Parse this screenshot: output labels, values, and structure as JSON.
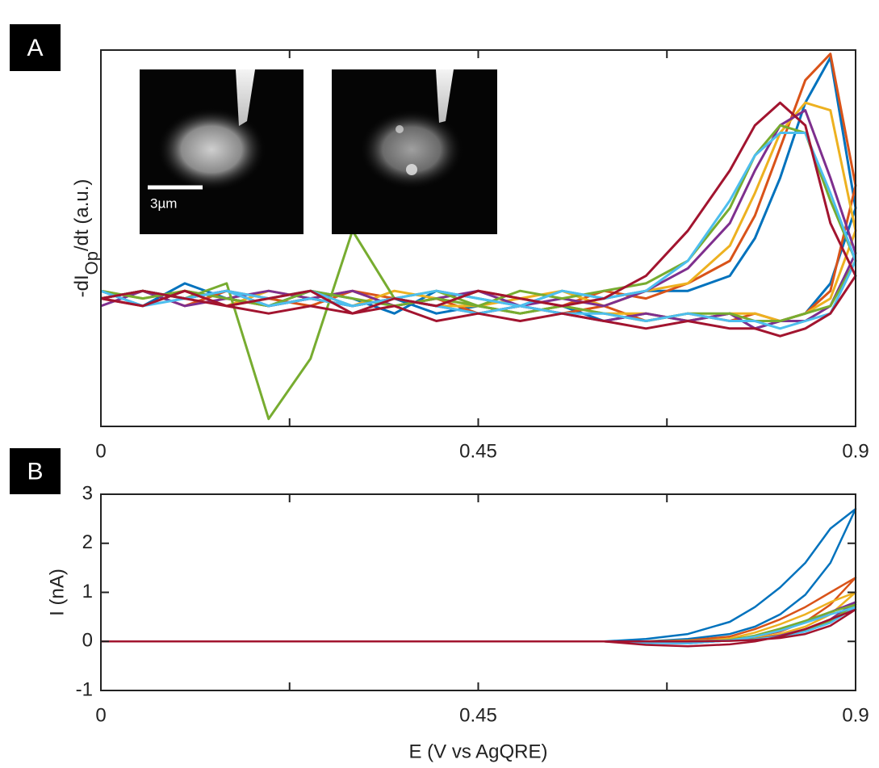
{
  "chart_data": [
    {
      "type": "line",
      "panel": "A",
      "annotation": "3µm",
      "ylabel": [
        "-dI",
        "Op",
        "/dt (a.u.)"
      ],
      "x": [
        0,
        0.05,
        0.1,
        0.15,
        0.2,
        0.25,
        0.3,
        0.35,
        0.4,
        0.45,
        0.5,
        0.55,
        0.6,
        0.65,
        0.7,
        0.75,
        0.78,
        0.81,
        0.84,
        0.87,
        0.9,
        0.87,
        0.84,
        0.81,
        0.78,
        0.75,
        0.7,
        0.65,
        0.6,
        0.55,
        0.5,
        0.45,
        0.4,
        0.35,
        0.3,
        0.25,
        0.2,
        0.15,
        0.1,
        0.05,
        0
      ],
      "xlim": [
        0,
        0.9
      ],
      "ylim": [
        -1.7,
        3.3
      ],
      "xticks": [
        0,
        0.45,
        0.9
      ],
      "xminorticks": [
        0.225,
        0.675
      ],
      "series": [
        {
          "color": "#0072bd",
          "values": [
            0.1,
            -0.1,
            0.2,
            0,
            -0.1,
            0.1,
            0,
            -0.2,
            0.1,
            0,
            -0.1,
            0.1,
            0,
            0.1,
            0.1,
            0.3,
            0.8,
            1.6,
            2.6,
            3.2,
            1.2,
            0.2,
            -0.2,
            -0.3,
            -0.4,
            -0.2,
            -0.3,
            -0.2,
            -0.3,
            -0.1,
            -0.2,
            -0.1,
            -0.2,
            0,
            -0.1,
            0,
            -0.1,
            0.1,
            0,
            0.1,
            0
          ]
        },
        {
          "color": "#d95319",
          "values": [
            0,
            0.1,
            -0.1,
            0.1,
            0,
            -0.1,
            0.1,
            0,
            -0.1,
            0.1,
            0,
            -0.1,
            0.1,
            0,
            0.2,
            0.5,
            1.1,
            2.0,
            2.9,
            3.25,
            1.5,
            0.1,
            -0.2,
            -0.3,
            -0.2,
            -0.3,
            -0.2,
            -0.3,
            -0.1,
            -0.2,
            -0.1,
            -0.2,
            0,
            -0.1,
            0.1,
            0,
            -0.1,
            0,
            0.1,
            -0.1,
            0
          ]
        },
        {
          "color": "#edb120",
          "values": [
            0.1,
            0,
            0.1,
            -0.1,
            0.1,
            0,
            -0.1,
            0.1,
            0,
            -0.1,
            0,
            0.1,
            -0.1,
            0.1,
            0.2,
            0.7,
            1.4,
            2.2,
            2.6,
            2.5,
            0.9,
            0,
            -0.2,
            -0.3,
            -0.2,
            -0.2,
            -0.3,
            -0.2,
            -0.2,
            -0.1,
            -0.2,
            -0.1,
            -0.1,
            0,
            -0.1,
            0.1,
            0,
            -0.1,
            0.1,
            0,
            0.1
          ]
        },
        {
          "color": "#7e2f8e",
          "values": [
            -0.1,
            0.1,
            0,
            0.1,
            -0.1,
            0,
            0.1,
            -0.1,
            0,
            0.1,
            -0.1,
            0,
            -0.1,
            0.1,
            0.4,
            1.0,
            1.7,
            2.3,
            2.5,
            1.6,
            0.6,
            -0.1,
            -0.3,
            -0.3,
            -0.4,
            -0.2,
            -0.3,
            -0.2,
            -0.3,
            -0.2,
            -0.1,
            -0.2,
            -0.1,
            0,
            -0.1,
            0,
            0.1,
            0,
            -0.1,
            0.1,
            0
          ]
        },
        {
          "color": "#77ac30",
          "values": [
            0,
            0.1,
            0,
            0.2,
            -1.6,
            -0.8,
            0.9,
            0,
            0.1,
            -0.1,
            0.1,
            0,
            0.1,
            0.2,
            0.5,
            1.2,
            1.9,
            2.3,
            2.2,
            1.3,
            0.5,
            -0.1,
            -0.2,
            -0.3,
            -0.3,
            -0.2,
            -0.2,
            -0.3,
            -0.2,
            -0.1,
            -0.2,
            -0.1,
            0,
            -0.1,
            0,
            0.1,
            -0.1,
            0,
            0.1,
            0,
            0.1
          ]
        },
        {
          "color": "#4dbeee",
          "values": [
            0.1,
            -0.1,
            0,
            0.1,
            0,
            0.1,
            -0.1,
            0,
            0.1,
            0,
            -0.1,
            0.1,
            0,
            0.1,
            0.5,
            1.3,
            1.9,
            2.2,
            2.2,
            1.4,
            0.5,
            -0.2,
            -0.3,
            -0.4,
            -0.3,
            -0.3,
            -0.2,
            -0.3,
            -0.2,
            -0.2,
            -0.1,
            -0.2,
            -0.1,
            0,
            -0.1,
            0,
            -0.1,
            0.1,
            0,
            -0.1,
            0.1
          ]
        },
        {
          "color": "#a2142f",
          "values": [
            0,
            -0.1,
            0.1,
            -0.1,
            0,
            0.1,
            -0.2,
            0,
            -0.1,
            0.1,
            0,
            -0.1,
            0,
            0.3,
            0.9,
            1.7,
            2.3,
            2.6,
            2.3,
            1.0,
            0.3,
            -0.2,
            -0.4,
            -0.5,
            -0.4,
            -0.4,
            -0.3,
            -0.4,
            -0.3,
            -0.2,
            -0.3,
            -0.2,
            -0.3,
            -0.1,
            -0.2,
            -0.1,
            -0.2,
            -0.1,
            0,
            0.1,
            0
          ]
        }
      ]
    },
    {
      "type": "line",
      "panel": "B",
      "xlabel": "E (V vs AgQRE)",
      "ylabel": "I (nA)",
      "x": [
        0,
        0.05,
        0.1,
        0.15,
        0.2,
        0.25,
        0.3,
        0.35,
        0.4,
        0.45,
        0.5,
        0.55,
        0.6,
        0.65,
        0.7,
        0.75,
        0.78,
        0.81,
        0.84,
        0.87,
        0.9,
        0.87,
        0.84,
        0.81,
        0.78,
        0.75,
        0.7,
        0.65,
        0.6,
        0.55,
        0.5,
        0.45,
        0.4,
        0.35,
        0.3,
        0.25,
        0.2,
        0.15,
        0.1,
        0.05,
        0
      ],
      "xlim": [
        0,
        0.9
      ],
      "ylim": [
        -1,
        3
      ],
      "xticks": [
        0,
        0.45,
        0.9
      ],
      "xminorticks": [
        0.225,
        0.675
      ],
      "yticks": [
        -1,
        0,
        1,
        2,
        3
      ],
      "series": [
        {
          "color": "#0072bd",
          "values": [
            0,
            0,
            0,
            0,
            0,
            0,
            0,
            0,
            0,
            0,
            0,
            0,
            0,
            0,
            0.05,
            0.15,
            0.3,
            0.55,
            0.95,
            1.6,
            2.7,
            2.3,
            1.6,
            1.1,
            0.7,
            0.4,
            0.15,
            0.05,
            0,
            0,
            0,
            0,
            0,
            0,
            0,
            0,
            0,
            0,
            0,
            0,
            0
          ]
        },
        {
          "color": "#d95319",
          "values": [
            0,
            0,
            0,
            0,
            0,
            0,
            0,
            0,
            0,
            0,
            0,
            0,
            0,
            0,
            0.02,
            0.05,
            0.1,
            0.2,
            0.4,
            0.75,
            1.3,
            1.0,
            0.7,
            0.45,
            0.25,
            0.1,
            0.02,
            -0.02,
            0,
            0,
            0,
            0,
            0,
            0,
            0,
            0,
            0,
            0,
            0,
            0,
            0
          ]
        },
        {
          "color": "#edb120",
          "values": [
            0,
            0,
            0,
            0,
            0,
            0,
            0,
            0,
            0,
            0,
            0,
            0,
            0,
            0,
            0.01,
            0.03,
            0.07,
            0.15,
            0.3,
            0.55,
            1.0,
            0.8,
            0.55,
            0.35,
            0.18,
            0.06,
            -0.02,
            -0.03,
            0,
            0,
            0,
            0,
            0,
            0,
            0,
            0,
            0,
            0,
            0,
            0,
            0
          ]
        },
        {
          "color": "#7e2f8e",
          "values": [
            0,
            0,
            0,
            0,
            0,
            0,
            0,
            0,
            0,
            0,
            0,
            0,
            0,
            0,
            0,
            0.02,
            0.05,
            0.12,
            0.25,
            0.45,
            0.8,
            0.6,
            0.4,
            0.22,
            0.1,
            0.02,
            -0.04,
            -0.03,
            0,
            0,
            0,
            0,
            0,
            0,
            0,
            0,
            0,
            0,
            0,
            0,
            0
          ]
        },
        {
          "color": "#77ac30",
          "values": [
            0,
            0,
            0,
            0,
            0,
            0,
            0,
            0,
            0,
            0,
            0,
            0,
            0,
            0,
            0,
            0.02,
            0.05,
            0.1,
            0.22,
            0.42,
            0.75,
            0.6,
            0.42,
            0.26,
            0.12,
            0.03,
            -0.03,
            -0.03,
            0,
            0,
            0,
            0,
            0,
            0,
            0,
            0,
            0,
            0,
            0,
            0,
            0
          ]
        },
        {
          "color": "#4dbeee",
          "values": [
            0,
            0,
            0,
            0,
            0,
            0,
            0,
            0,
            0,
            0,
            0,
            0,
            0,
            0,
            0,
            0.02,
            0.04,
            0.1,
            0.2,
            0.38,
            0.7,
            0.55,
            0.38,
            0.22,
            0.1,
            0.02,
            -0.04,
            -0.03,
            0,
            0,
            0,
            0,
            0,
            0,
            0,
            0,
            0,
            0,
            0,
            0,
            0
          ]
        },
        {
          "color": "#a2142f",
          "values": [
            0,
            0,
            0,
            0,
            0,
            0,
            0,
            0,
            0,
            0,
            0,
            0,
            0,
            0,
            0,
            0.01,
            0.03,
            0.07,
            0.15,
            0.32,
            0.65,
            0.45,
            0.25,
            0.1,
            0.0,
            -0.06,
            -0.1,
            -0.07,
            0,
            0,
            0,
            0,
            0,
            0,
            0,
            0,
            0,
            0,
            0,
            0,
            0
          ]
        }
      ]
    }
  ]
}
